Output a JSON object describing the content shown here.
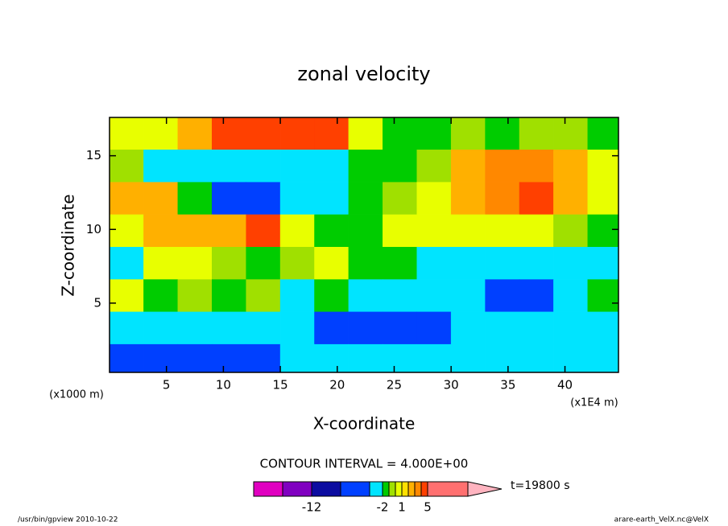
{
  "chart_data": {
    "type": "contour",
    "title": "zonal velocity",
    "xlabel": "X-coordinate",
    "ylabel": "Z-coordinate",
    "x_units_label": "(x1E4 m)",
    "y_units_label": "(x1000 m)",
    "xlim": [
      0,
      44.7
    ],
    "ylim": [
      0.3,
      17.6
    ],
    "xticks": [
      5,
      10,
      15,
      20,
      25,
      30,
      35,
      40
    ],
    "yticks": [
      5,
      10,
      15
    ],
    "x": [
      1.5,
      4.5,
      7.5,
      10.5,
      13.5,
      16.5,
      19.5,
      22.5,
      25.5,
      28.5,
      31.5,
      34.5,
      37.5,
      40.5,
      43.5
    ],
    "z": [
      16.5,
      14.3,
      12.1,
      9.9,
      7.7,
      5.5,
      3.3,
      1.1
    ],
    "values": [
      [
        0.5,
        0.5,
        2.5,
        4.5,
        4.5,
        4.5,
        4.5,
        0.5,
        -1.5,
        -1.5,
        -0.5,
        -1.5,
        -0.5,
        -0.5,
        -1.5
      ],
      [
        -0.5,
        -3,
        -3,
        -3,
        -3,
        -3,
        -3,
        -1.5,
        -1.5,
        -0.5,
        2.5,
        3.5,
        3.5,
        2.5,
        0.5
      ],
      [
        2.5,
        2.5,
        -1.5,
        -6,
        -6,
        -3,
        -3,
        -1.5,
        -0.5,
        0.5,
        2.5,
        3.5,
        4.5,
        2.5,
        0.5
      ],
      [
        0.5,
        2.5,
        2.5,
        2.5,
        4.5,
        0.5,
        -1.5,
        -1.5,
        0.5,
        0.5,
        0.5,
        0.5,
        0.5,
        -0.5,
        -1.5
      ],
      [
        -3,
        0.5,
        0.5,
        -0.5,
        -1.5,
        -0.5,
        0.5,
        -1.5,
        -1.5,
        -3,
        -3,
        -3,
        -3,
        -3,
        -3
      ],
      [
        0.5,
        -1.5,
        -0.5,
        -1.5,
        -0.5,
        -3,
        -1.5,
        -3,
        -3,
        -3,
        -3,
        -6,
        -6,
        -3,
        -1.5
      ],
      [
        -3,
        -3,
        -3,
        -3,
        -3,
        -3,
        -6,
        -6,
        -6,
        -6,
        -3,
        -3,
        -3,
        -3,
        -3
      ],
      [
        -6,
        -6,
        -6,
        -6,
        -6,
        -3,
        -3,
        -3,
        -3,
        -3,
        -3,
        -3,
        -3,
        -3,
        -3
      ]
    ],
    "contour_interval_label": "CONTOUR INTERVAL = 4.000E+00",
    "time_label": "t=19800 s",
    "colorbar": {
      "levels": [
        -20,
        -16,
        -12,
        -8,
        -4,
        -2,
        -1,
        0,
        1,
        2,
        3,
        4,
        5,
        10
      ],
      "colors": [
        "#e000c0",
        "#8000c0",
        "#0c0ca0",
        "#0040ff",
        "#00e4ff",
        "#00cc00",
        "#a0e000",
        "#e8ff00",
        "#ffe000",
        "#ffb000",
        "#ff8800",
        "#ff4000",
        "#ff7070"
      ],
      "over_color": "#ffb4c0",
      "ticks": [
        -12,
        -2,
        1,
        5
      ]
    }
  },
  "footer": {
    "left": "/usr/bin/gpview  2010-10-22",
    "right": "arare-earth_VelX.nc@VelX"
  }
}
